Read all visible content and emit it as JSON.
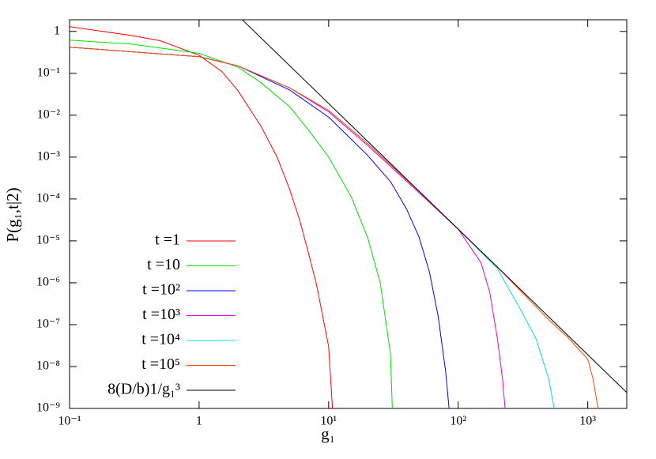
{
  "chart_data": {
    "type": "line",
    "x_label": "g₁",
    "y_label": "P(g₁,t|2)",
    "xscale": "log",
    "yscale": "log",
    "xlim": [
      0.1,
      2000
    ],
    "ylim": [
      1e-09,
      1.9
    ],
    "xticks": [
      {
        "value": 0.1,
        "label": "10⁻¹"
      },
      1,
      {
        "value": 10,
        "label": "10¹"
      },
      {
        "value": 100,
        "label": "10²"
      },
      {
        "value": 1000,
        "label": "10³"
      }
    ],
    "yticks": [
      {
        "value": 1e-09,
        "label": "10⁻⁹"
      },
      {
        "value": 1e-08,
        "label": "10⁻⁸"
      },
      {
        "value": 1e-07,
        "label": "10⁻⁷"
      },
      {
        "value": 1e-06,
        "label": "10⁻⁶"
      },
      {
        "value": 1e-05,
        "label": "10⁻⁵"
      },
      {
        "value": 0.0001,
        "label": "10⁻⁴"
      },
      {
        "value": 0.001,
        "label": "10⁻³"
      },
      {
        "value": 0.01,
        "label": "10⁻²"
      },
      {
        "value": 0.1,
        "label": "10⁻¹"
      },
      1
    ],
    "legend": "right",
    "series": [
      {
        "name": "t =1",
        "color": "#ff0000",
        "x": [
          0.1,
          0.3,
          0.5,
          1,
          1.5,
          2,
          3,
          4,
          5,
          6,
          7,
          8,
          9,
          10,
          10.7
        ],
        "values": [
          1.3,
          0.8,
          0.6,
          0.27,
          0.11,
          0.038,
          0.0055,
          0.001,
          0.00017,
          3e-05,
          5e-06,
          1e-06,
          1.6e-07,
          3e-08,
          1e-09
        ]
      },
      {
        "name": "t =10",
        "color": "#00e000",
        "x": [
          0.1,
          0.3,
          1,
          2,
          3,
          5,
          7,
          10,
          15,
          20,
          25,
          30,
          31
        ],
        "values": [
          0.62,
          0.5,
          0.3,
          0.14,
          0.06,
          0.016,
          0.0044,
          0.001,
          0.00011,
          1.2e-05,
          1e-06,
          2e-08,
          1e-09
        ]
      },
      {
        "name": "t =10²",
        "color": "#0000ff",
        "x": [
          0.1,
          1,
          2,
          5,
          10,
          20,
          30,
          40,
          50,
          60,
          70,
          80,
          85
        ],
        "values": [
          0.42,
          0.25,
          0.15,
          0.04,
          0.009,
          0.0011,
          0.00026,
          5.7e-05,
          1.2e-05,
          1.8e-06,
          1.6e-07,
          7.6e-09,
          1e-09
        ]
      },
      {
        "name": "t =10³",
        "color": "#e000e0",
        "x": [
          0.1,
          1,
          2,
          5,
          10,
          20,
          50,
          100,
          150,
          175,
          200,
          220,
          230
        ],
        "values": [
          0.42,
          0.25,
          0.15,
          0.045,
          0.012,
          0.0019,
          0.00014,
          1.9e-05,
          3e-06,
          6e-07,
          5e-08,
          5e-09,
          1e-09
        ]
      },
      {
        "name": "t =10⁴",
        "color": "#00e0e0",
        "x": [
          0.1,
          1,
          2,
          5,
          10,
          20,
          50,
          100,
          200,
          300,
          400,
          500,
          550
        ],
        "values": [
          0.42,
          0.25,
          0.15,
          0.045,
          0.013,
          0.0021,
          0.00015,
          1.9e-05,
          2.2e-06,
          2.4e-07,
          4.5e-08,
          5e-09,
          1e-09
        ]
      },
      {
        "name": "t =10⁵",
        "color": "#ff4500",
        "x": [
          0.1,
          1,
          2,
          5,
          10,
          20,
          50,
          100,
          200,
          500,
          700,
          1000,
          1100,
          1200
        ],
        "values": [
          0.42,
          0.25,
          0.15,
          0.045,
          0.013,
          0.0021,
          0.00015,
          1.9e-05,
          2.4e-06,
          1.3e-07,
          5e-08,
          1.5e-08,
          5e-09,
          1e-09
        ]
      },
      {
        "name": "8(D/b)1/g₁³",
        "color": "#000000",
        "x": [
          2.1,
          2000
        ],
        "values": [
          2.05,
          2.4e-09
        ]
      }
    ]
  }
}
